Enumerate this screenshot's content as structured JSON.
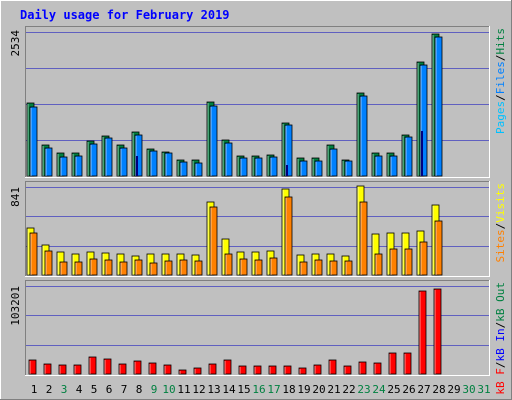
{
  "title": "Daily usage for February 2019",
  "colors": {
    "background": "#c0c0c0",
    "plot": "#c0c0c0",
    "grid": "#0000c0",
    "title": "#0000ff",
    "hits": "#008040",
    "files": "#0080ff",
    "pages": "#00c0ff",
    "visits": "#ffff00",
    "sites": "#ff8000",
    "kbf": "#ff0000",
    "weekday_label": "#000000",
    "weekend_label": "#008040"
  },
  "chart_data": [
    {
      "type": "bar",
      "name": "hits-files-pages",
      "ymax_label": "2534",
      "ylim": [
        0,
        2534
      ],
      "legend": [
        {
          "text": "Pages",
          "color": "#00c0ff"
        },
        {
          "text": "/",
          "color": "#000000"
        },
        {
          "text": "Files",
          "color": "#0080ff"
        },
        {
          "text": "/",
          "color": "#000000"
        },
        {
          "text": "Hits",
          "color": "#008040"
        }
      ],
      "series": [
        {
          "key": "hits",
          "values": [
            1280,
            540,
            400,
            410,
            620,
            700,
            550,
            770,
            470,
            430,
            280,
            280,
            1300,
            630,
            360,
            350,
            370,
            930,
            310,
            310,
            540,
            290,
            1460,
            410,
            410,
            730,
            2000,
            2500,
            0,
            0,
            0
          ]
        },
        {
          "key": "files",
          "values": [
            1220,
            490,
            330,
            350,
            570,
            660,
            500,
            730,
            440,
            400,
            240,
            230,
            1230,
            580,
            320,
            310,
            330,
            890,
            260,
            270,
            480,
            260,
            1400,
            360,
            360,
            690,
            1950,
            2450,
            0,
            0,
            0
          ]
        },
        {
          "key": "pages",
          "values": [
            0,
            0,
            0,
            0,
            0,
            0,
            0,
            360,
            0,
            0,
            0,
            0,
            0,
            0,
            0,
            0,
            0,
            200,
            0,
            0,
            0,
            0,
            0,
            0,
            0,
            0,
            800,
            0,
            0,
            0,
            0
          ]
        }
      ]
    },
    {
      "type": "bar",
      "name": "visits-sites",
      "ymax_label": "841",
      "ylim": [
        0,
        841
      ],
      "legend": [
        {
          "text": "Sites",
          "color": "#ff8000"
        },
        {
          "text": "/",
          "color": "#000000"
        },
        {
          "text": "Visits",
          "color": "#ffff00"
        }
      ],
      "series": [
        {
          "key": "visits",
          "values": [
            450,
            290,
            220,
            200,
            220,
            210,
            200,
            180,
            200,
            200,
            200,
            190,
            700,
            340,
            220,
            220,
            230,
            820,
            190,
            200,
            200,
            180,
            850,
            390,
            400,
            400,
            420,
            670,
            0,
            0,
            0
          ]
        },
        {
          "key": "sites",
          "values": [
            400,
            230,
            120,
            120,
            150,
            140,
            120,
            140,
            110,
            130,
            140,
            130,
            650,
            200,
            150,
            140,
            160,
            750,
            120,
            140,
            130,
            130,
            700,
            200,
            250,
            250,
            320,
            520,
            0,
            0,
            0
          ]
        }
      ]
    },
    {
      "type": "bar",
      "name": "kb",
      "ymax_label": "103201",
      "ylim": [
        0,
        103201
      ],
      "legend": [
        {
          "text": "kB F",
          "color": "#ff0000"
        },
        {
          "text": "/",
          "color": "#000000"
        },
        {
          "text": "kB In",
          "color": "#0000ff"
        },
        {
          "text": "/",
          "color": "#000000"
        },
        {
          "text": "kB Out",
          "color": "#008040"
        }
      ],
      "series": [
        {
          "key": "kbf",
          "values": [
            16000,
            12000,
            11000,
            11000,
            20000,
            18000,
            12000,
            15000,
            13000,
            11000,
            5000,
            7000,
            12000,
            16000,
            9000,
            9000,
            9000,
            9000,
            7000,
            11000,
            16000,
            9000,
            14000,
            13000,
            25000,
            25000,
            97000,
            100000,
            0,
            0,
            0
          ]
        }
      ]
    }
  ],
  "days": [
    {
      "label": "1",
      "weekend": false
    },
    {
      "label": "2",
      "weekend": false
    },
    {
      "label": "3",
      "weekend": true
    },
    {
      "label": "4",
      "weekend": false
    },
    {
      "label": "5",
      "weekend": false
    },
    {
      "label": "6",
      "weekend": false
    },
    {
      "label": "7",
      "weekend": false
    },
    {
      "label": "8",
      "weekend": false
    },
    {
      "label": "9",
      "weekend": true
    },
    {
      "label": "10",
      "weekend": true
    },
    {
      "label": "11",
      "weekend": false
    },
    {
      "label": "12",
      "weekend": false
    },
    {
      "label": "13",
      "weekend": false
    },
    {
      "label": "14",
      "weekend": false
    },
    {
      "label": "15",
      "weekend": false
    },
    {
      "label": "16",
      "weekend": true
    },
    {
      "label": "17",
      "weekend": true
    },
    {
      "label": "18",
      "weekend": false
    },
    {
      "label": "19",
      "weekend": false
    },
    {
      "label": "20",
      "weekend": false
    },
    {
      "label": "21",
      "weekend": false
    },
    {
      "label": "22",
      "weekend": false
    },
    {
      "label": "23",
      "weekend": true
    },
    {
      "label": "24",
      "weekend": true
    },
    {
      "label": "25",
      "weekend": false
    },
    {
      "label": "26",
      "weekend": false
    },
    {
      "label": "27",
      "weekend": false
    },
    {
      "label": "28",
      "weekend": false
    },
    {
      "label": "29",
      "weekend": false
    },
    {
      "label": "30",
      "weekend": true
    },
    {
      "label": "31",
      "weekend": true
    }
  ]
}
